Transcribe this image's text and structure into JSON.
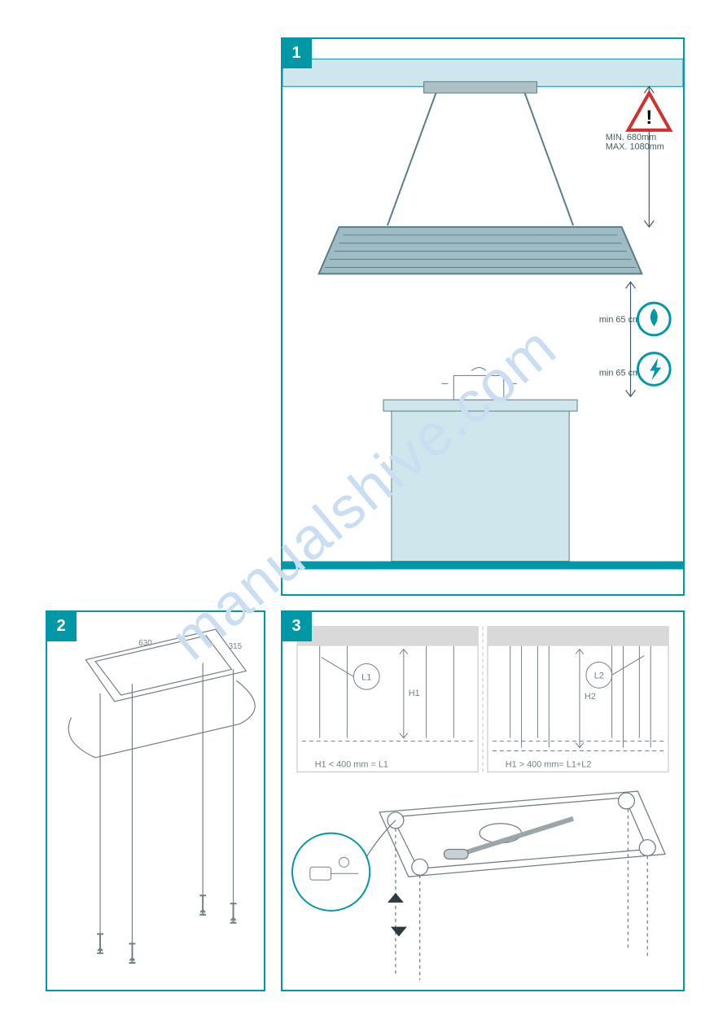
{
  "watermark": {
    "text": "manualshive.com",
    "color": "#c9ddf3"
  },
  "panels": {
    "p1": {
      "number": "1",
      "warning_triangle": {
        "border": "#d32f2f",
        "fill": "#ffffff",
        "glyph": "!"
      },
      "gas_icon": {
        "circle": "#0097a7",
        "glyph_color": "#ffffff"
      },
      "elec_icon": {
        "circle": "#0097a7",
        "glyph_color": "#ffffff"
      },
      "distances": {
        "ceiling_to_hood": {
          "label": "MIN. 680mm\nMAX. 1080mm"
        },
        "hood_to_gas": {
          "label": "min 65 cm"
        },
        "hood_to_electric": {
          "label": "min 65 cm"
        }
      },
      "colors": {
        "accent": "#0097a7",
        "ceiling": "#cfe6ec",
        "hood_body": "#9fbcc5",
        "hood_lines": "#5a7d89",
        "cooktop": "#cfe6ec",
        "outline": "#5a7d89",
        "floor": "#0097a7",
        "arrow": "#425b66"
      }
    },
    "p2": {
      "number": "2",
      "measurements": {
        "plate_long": "630",
        "plate_short": "315"
      },
      "colors": {
        "line": "#747f85"
      }
    },
    "p3": {
      "number": "3",
      "variants": {
        "left": {
          "circle_label": "L1",
          "h_label": "H1",
          "note": "H1 < 400 mm = L1"
        },
        "right": {
          "circle_label": "L2",
          "h_label": "H2",
          "note": "H1 > 400 mm= L1+L2"
        }
      },
      "colors": {
        "ceiling": "#d9d9d9",
        "line": "#747f85",
        "accent": "#0097a7"
      }
    }
  }
}
